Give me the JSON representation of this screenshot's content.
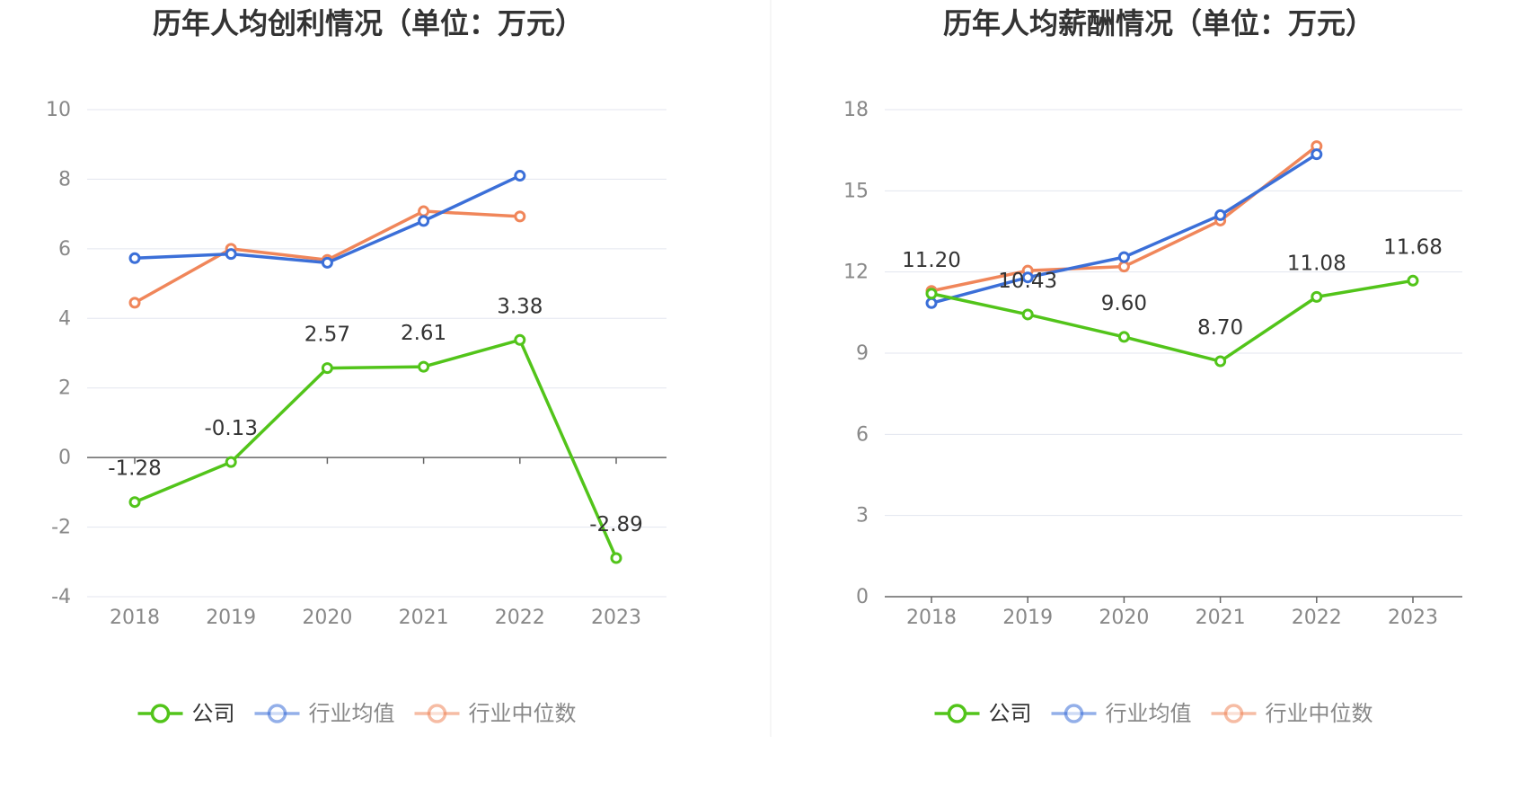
{
  "chart_data": [
    {
      "type": "line",
      "title": "历年人均创利情况（单位：万元）",
      "categories": [
        "2018",
        "2019",
        "2020",
        "2021",
        "2022",
        "2023"
      ],
      "ylim": [
        -4,
        10
      ],
      "yticks": [
        10,
        8,
        6,
        4,
        2,
        0,
        -2,
        -4
      ],
      "grid": true,
      "legend_position": "bottom",
      "series": [
        {
          "name": "公司",
          "color": "#52c41a",
          "values": [
            -1.28,
            -0.13,
            2.57,
            2.61,
            3.38,
            -2.89
          ],
          "labels": [
            "-1.28",
            "-0.13",
            "2.57",
            "2.61",
            "3.38",
            "-2.89"
          ]
        },
        {
          "name": "行业均值",
          "color": "#3b6fd8",
          "values": [
            5.73,
            5.85,
            5.6,
            6.8,
            8.1,
            null
          ]
        },
        {
          "name": "行业中位数",
          "color": "#f0865a",
          "values": [
            4.45,
            6.0,
            5.68,
            7.08,
            6.93,
            null
          ]
        }
      ]
    },
    {
      "type": "line",
      "title": "历年人均薪酬情况（单位：万元）",
      "categories": [
        "2018",
        "2019",
        "2020",
        "2021",
        "2022",
        "2023"
      ],
      "ylim": [
        0,
        18
      ],
      "yticks": [
        18,
        15,
        12,
        9,
        6,
        3,
        0
      ],
      "grid": true,
      "legend_position": "bottom",
      "series": [
        {
          "name": "公司",
          "color": "#52c41a",
          "values": [
            11.2,
            10.43,
            9.6,
            8.7,
            11.08,
            11.68
          ],
          "labels": [
            "11.20",
            "10.43",
            "9.60",
            "8.70",
            "11.08",
            "11.68"
          ]
        },
        {
          "name": "行业均值",
          "color": "#3b6fd8",
          "values": [
            10.85,
            11.8,
            12.55,
            14.1,
            16.35,
            null
          ]
        },
        {
          "name": "行业中位数",
          "color": "#f0865a",
          "values": [
            11.3,
            12.05,
            12.2,
            13.9,
            16.65,
            null
          ]
        }
      ]
    }
  ]
}
